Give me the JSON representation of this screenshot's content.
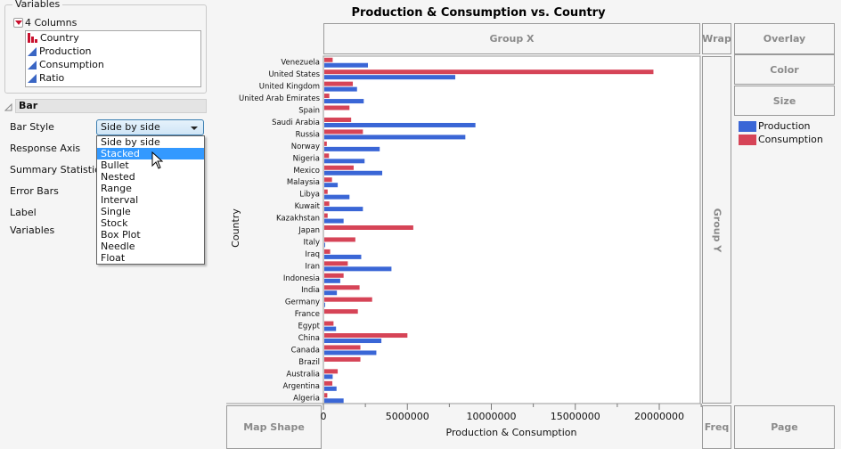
{
  "left_panel": {
    "variables_group_label": "Variables",
    "columns_header": "4 Columns",
    "columns": [
      {
        "name": "Country",
        "type_icon": "nominal-bar-icon"
      },
      {
        "name": "Production",
        "type_icon": "continuous-triangle-icon"
      },
      {
        "name": "Consumption",
        "type_icon": "continuous-triangle-icon"
      },
      {
        "name": "Ratio",
        "type_icon": "continuous-triangle-icon"
      }
    ],
    "bar_section_title": "Bar",
    "properties": {
      "bar_style": "Bar Style",
      "response_axis": "Response Axis",
      "summary_statistic": "Summary Statistic",
      "error_bars": "Error Bars",
      "label": "Label",
      "variables": "Variables"
    },
    "bar_style_selected": "Side by side",
    "bar_style_options": [
      "Side by side",
      "Stacked",
      "Bullet",
      "Nested",
      "Range",
      "Interval",
      "Single",
      "Stock",
      "Box Plot",
      "Needle",
      "Float"
    ],
    "bar_style_highlighted": "Stacked"
  },
  "zones": {
    "group_x": "Group X",
    "wrap": "Wrap",
    "overlay": "Overlay",
    "color": "Color",
    "size": "Size",
    "group_y": "Group Y",
    "map_shape": "Map Shape",
    "freq": "Freq",
    "page": "Page"
  },
  "colors": {
    "production": "#3a66d6",
    "consumption": "#d64457"
  },
  "chart_data": {
    "type": "bar",
    "orientation": "horizontal",
    "title": "Production & Consumption vs. Country",
    "xlabel": "Production & Consumption",
    "ylabel": "Country",
    "xlim": [
      0,
      22500000
    ],
    "xticks": [
      0,
      5000000,
      10000000,
      15000000,
      20000000
    ],
    "xtick_labels": [
      "0",
      "5000000",
      "10000000",
      "15000000",
      "20000000"
    ],
    "legend_position": "right",
    "categories": [
      "Venezuela",
      "United States",
      "United Kingdom",
      "United Arab Emirates",
      "Spain",
      "Saudi Arabia",
      "Russia",
      "Norway",
      "Nigeria",
      "Mexico",
      "Malaysia",
      "Libya",
      "Kuwait",
      "Kazakhstan",
      "Japan",
      "Italy",
      "Iraq",
      "Iran",
      "Indonesia",
      "India",
      "Germany",
      "France",
      "Egypt",
      "China",
      "Canada",
      "Brazil",
      "Australia",
      "Argentina",
      "Algeria"
    ],
    "series": [
      {
        "name": "Production",
        "values": [
          2600000,
          7800000,
          1950000,
          2350000,
          0,
          9000000,
          8400000,
          3300000,
          2400000,
          3450000,
          800000,
          1500000,
          2300000,
          1150000,
          0,
          50000,
          2200000,
          4000000,
          950000,
          750000,
          50000,
          0,
          700000,
          3400000,
          3100000,
          0,
          500000,
          730000,
          1150000
        ]
      },
      {
        "name": "Consumption",
        "values": [
          500000,
          19600000,
          1700000,
          300000,
          1500000,
          1600000,
          2300000,
          150000,
          280000,
          1750000,
          460000,
          200000,
          300000,
          200000,
          5300000,
          1850000,
          350000,
          1400000,
          1150000,
          2100000,
          2850000,
          2000000,
          550000,
          4950000,
          2150000,
          2150000,
          800000,
          480000,
          180000
        ]
      }
    ]
  }
}
